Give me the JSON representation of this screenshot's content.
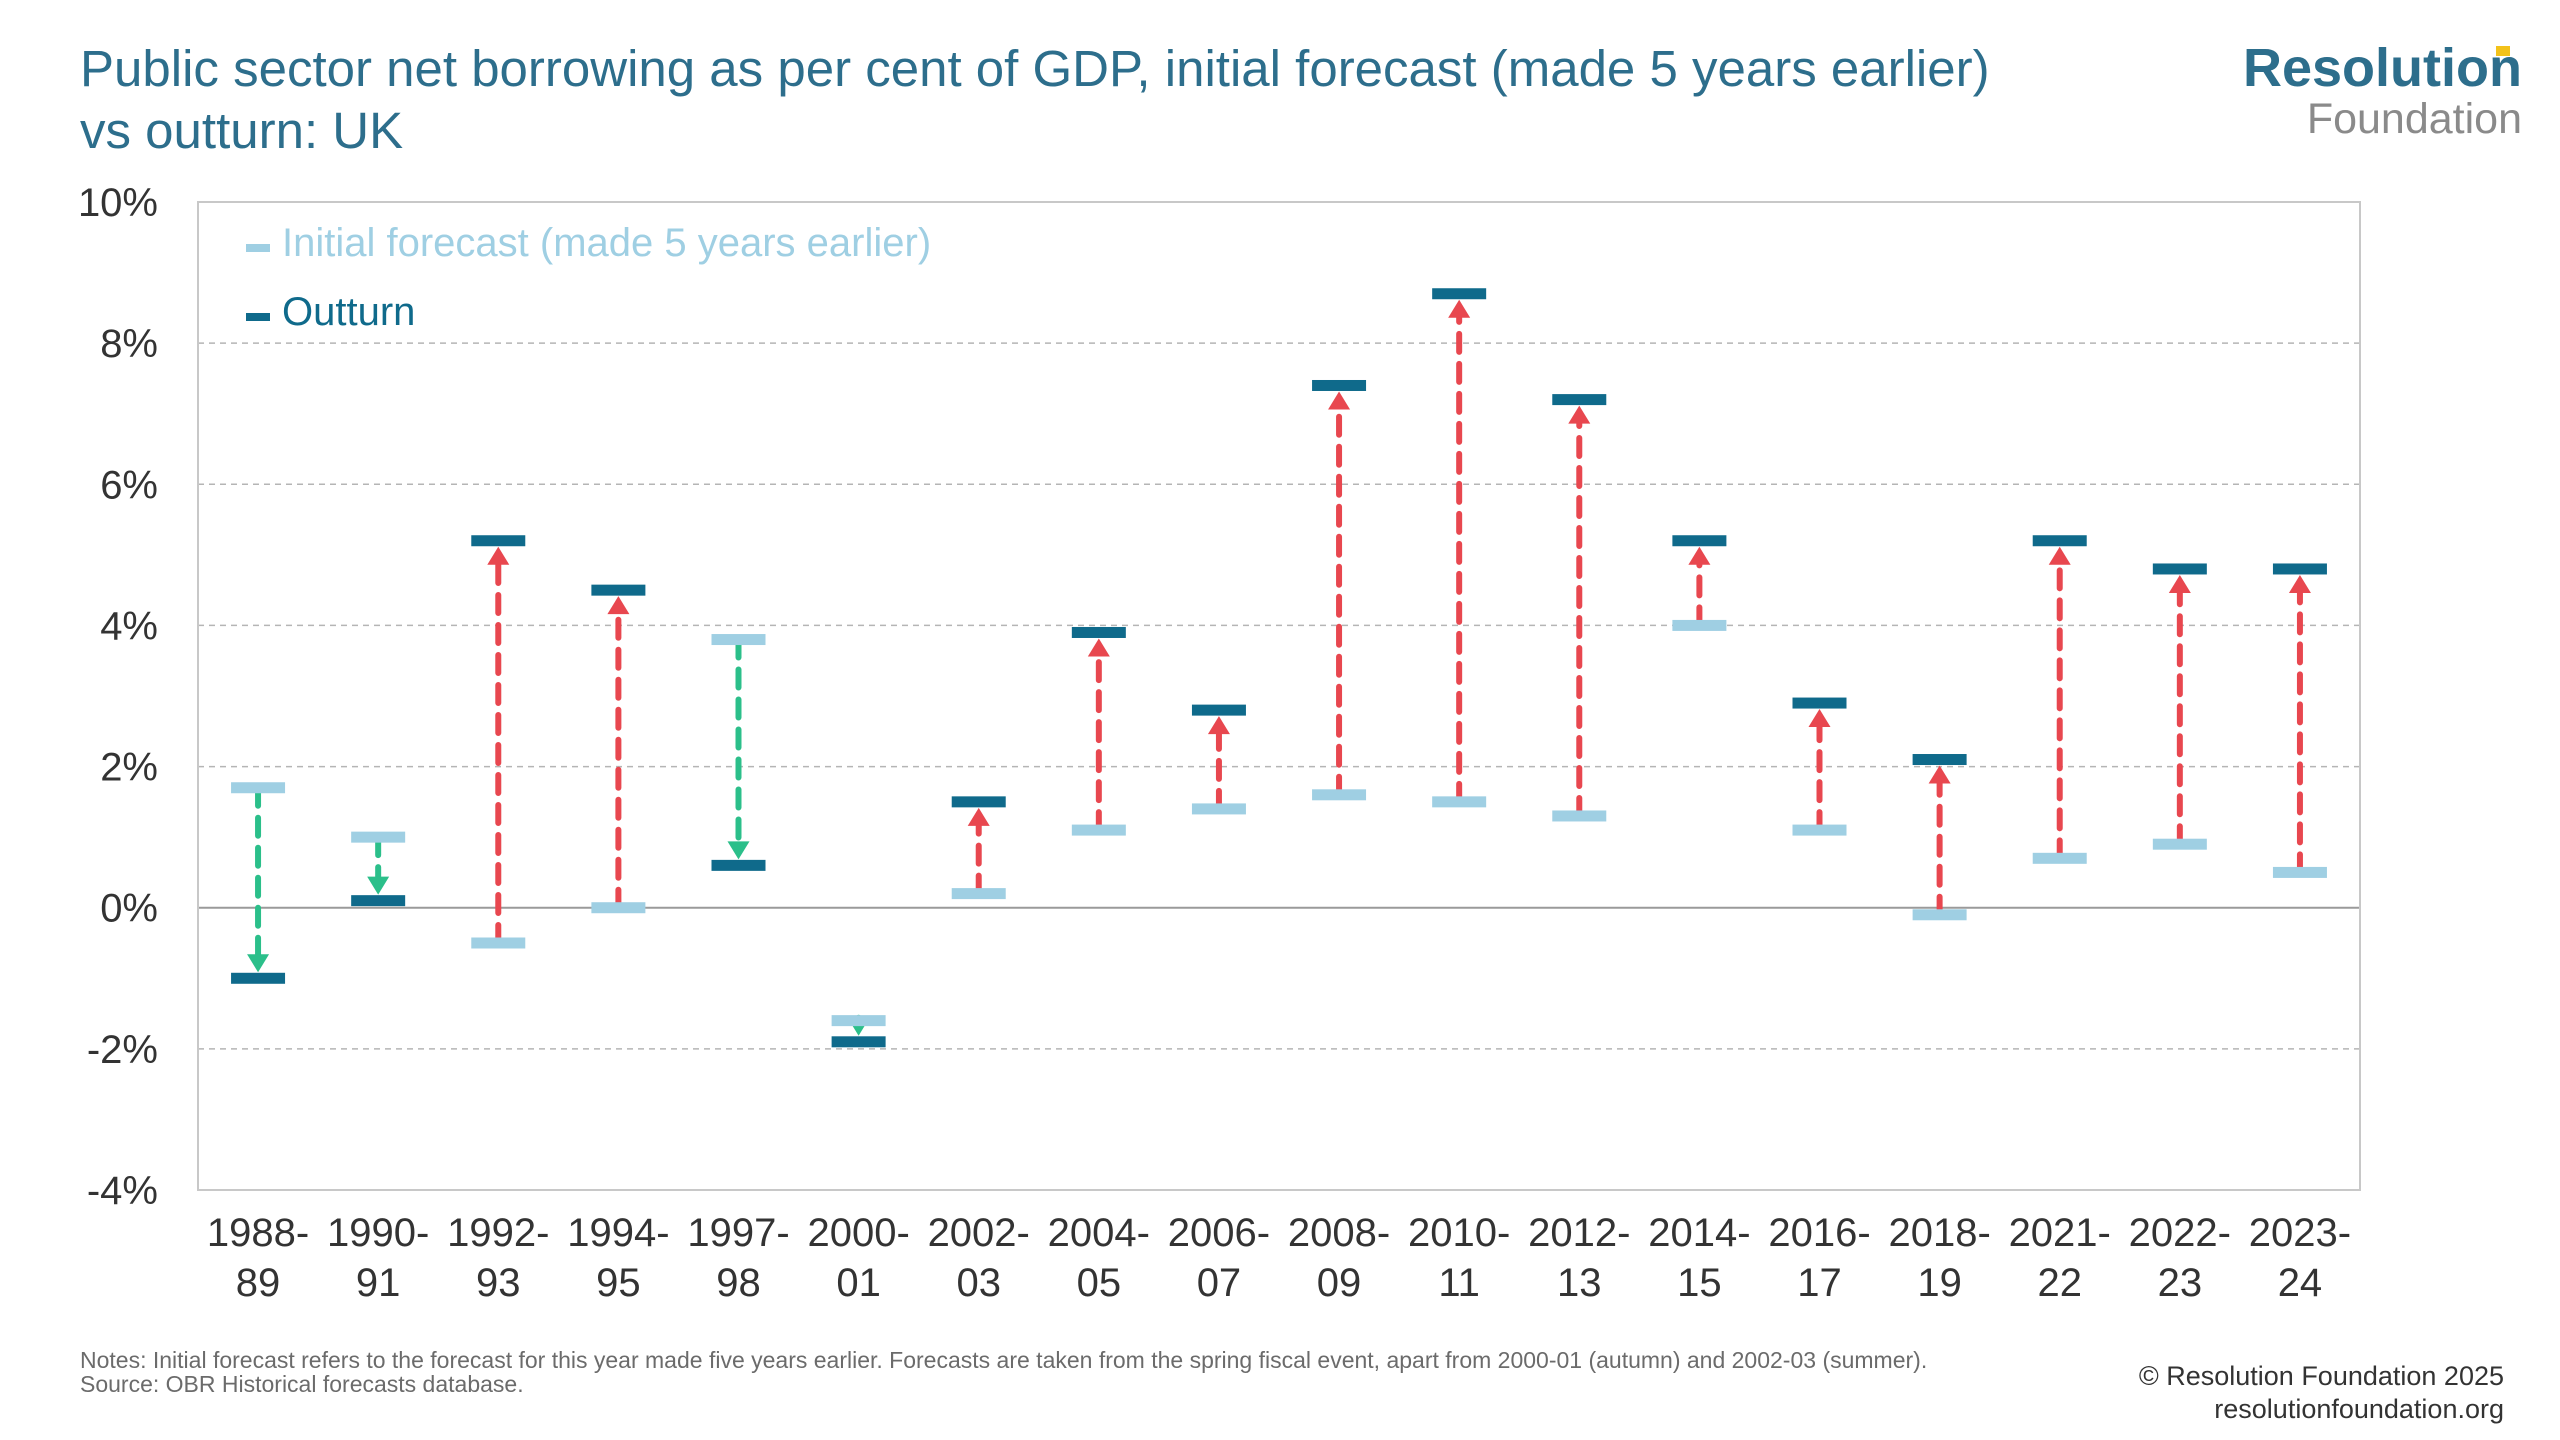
{
  "header": {
    "title_line1": "Public sector net borrowing as per cent of GDP, initial forecast (made 5 years earlier)",
    "title_line2": "vs outturn: UK"
  },
  "logo": {
    "name_top": "Resolution",
    "name_bottom": "Foundation"
  },
  "footer": {
    "notes": "Notes: Initial forecast refers to the forecast for this year made five years earlier. Forecasts are taken from the spring fiscal event, apart from 2000-01 (autumn) and 2002-03 (summer).",
    "source": "Source: OBR Historical forecasts database.",
    "copyright": "© Resolution Foundation 2025",
    "website": "resolutionfoundation.org"
  },
  "colors": {
    "forecast": "#9fcfe3",
    "outturn": "#0f6a8b",
    "increase_arrow": "#e8474f",
    "decrease_arrow": "#2bbf8a",
    "grid": "#b5b5b5",
    "zero_line": "#9a9a9a",
    "axis_text": "#333333"
  },
  "chart_data": {
    "type": "range-arrow",
    "categories": [
      [
        "1988-",
        "89"
      ],
      [
        "1990-",
        "91"
      ],
      [
        "1992-",
        "93"
      ],
      [
        "1994-",
        "95"
      ],
      [
        "1997-",
        "98"
      ],
      [
        "2000-",
        "01"
      ],
      [
        "2002-",
        "03"
      ],
      [
        "2004-",
        "05"
      ],
      [
        "2006-",
        "07"
      ],
      [
        "2008-",
        "09"
      ],
      [
        "2010-",
        "11"
      ],
      [
        "2012-",
        "13"
      ],
      [
        "2014-",
        "15"
      ],
      [
        "2016-",
        "17"
      ],
      [
        "2018-",
        "19"
      ],
      [
        "2021-",
        "22"
      ],
      [
        "2022-",
        "23"
      ],
      [
        "2023-",
        "24"
      ]
    ],
    "series": [
      {
        "name": "Initial forecast (made 5 years earlier)",
        "values": [
          1.7,
          1.0,
          -0.5,
          0.0,
          3.8,
          -1.6,
          0.2,
          1.1,
          1.4,
          1.6,
          1.5,
          1.3,
          4.0,
          1.1,
          -0.1,
          0.7,
          0.9,
          0.5
        ]
      },
      {
        "name": "Outturn",
        "values": [
          -1.0,
          0.1,
          5.2,
          4.5,
          0.6,
          -1.9,
          1.5,
          3.9,
          2.8,
          7.4,
          8.7,
          7.2,
          5.2,
          2.9,
          2.1,
          5.2,
          4.8,
          4.8
        ]
      }
    ],
    "ylim": [
      -4,
      10
    ],
    "yticks": [
      -4,
      -2,
      0,
      2,
      4,
      6,
      8,
      10
    ],
    "ytick_labels": [
      "-4%",
      "-2%",
      "0%",
      "2%",
      "4%",
      "6%",
      "8%",
      "10%"
    ],
    "grid": true,
    "legend_position": "top-left"
  }
}
